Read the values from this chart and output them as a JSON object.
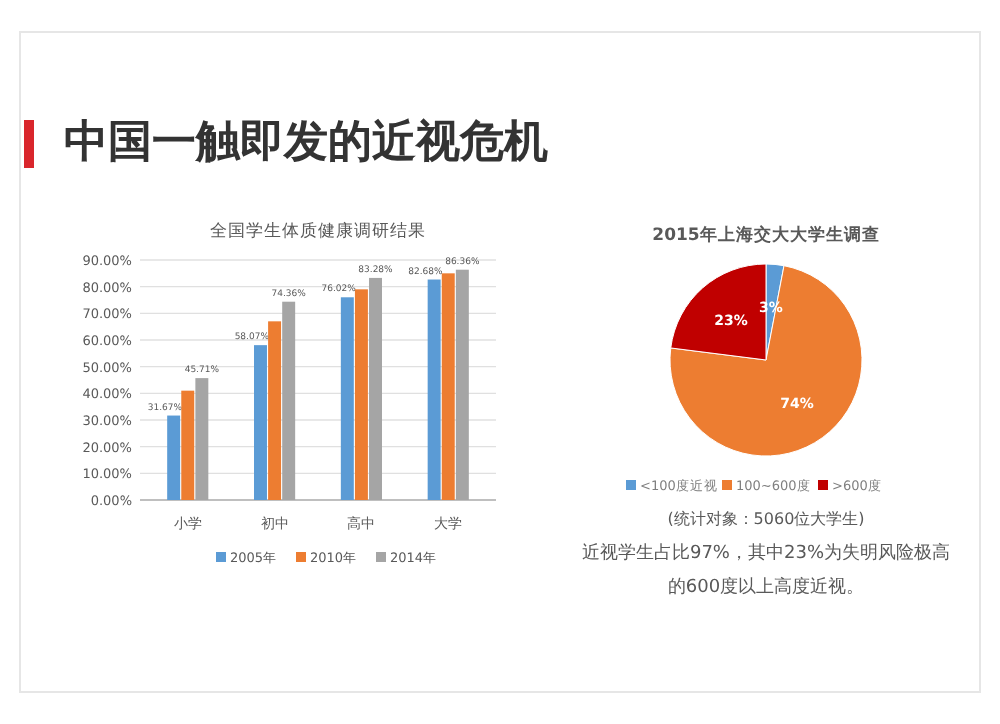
{
  "chart_data": [
    {
      "type": "bar",
      "title": "全国学生体质健康调研结果",
      "annotations": [
        "中国一触即发的近视危机"
      ],
      "categories": [
        "小学",
        "初中",
        "高中",
        "大学"
      ],
      "series": [
        {
          "name": "2005年",
          "color": "#5b9bd5",
          "values": [
            31.67,
            58.07,
            76.02,
            82.68
          ],
          "value_labels": [
            "31.67%",
            "58.07%",
            "76.02%",
            "82.68%"
          ]
        },
        {
          "name": "2010年",
          "color": "#ed7d31",
          "values": [
            41,
            67,
            79,
            85
          ]
        },
        {
          "name": "2014年",
          "color": "#a5a5a5",
          "values": [
            45.71,
            74.36,
            83.28,
            86.36
          ],
          "value_labels": [
            "45.71%",
            "74.36%",
            "83.28%",
            "86.36%"
          ]
        }
      ],
      "ylim": [
        0,
        90
      ],
      "yticks": [
        {
          "value": 0,
          "label": "0.00%"
        },
        {
          "value": 10,
          "label": "10.00%"
        },
        {
          "value": 20,
          "label": "20.00%"
        },
        {
          "value": 30,
          "label": "30.00%"
        },
        {
          "value": 40,
          "label": "40.00%"
        },
        {
          "value": 50,
          "label": "50.00%"
        },
        {
          "value": 60,
          "label": "60.00%"
        },
        {
          "value": 70,
          "label": "70.00%"
        },
        {
          "value": 80,
          "label": "80.00%"
        },
        {
          "value": 90,
          "label": "90.00%"
        }
      ],
      "grid": "y",
      "legend": "bottom"
    },
    {
      "type": "pie",
      "title": "2015年上海交大大学生调查",
      "categories": [
        "<100度近视",
        "100~600度",
        ">600度"
      ],
      "values": [
        3,
        74,
        23
      ],
      "colors": [
        "#5b9bd5",
        "#ed7d31",
        "#c00000"
      ],
      "value_labels": [
        "3%",
        "74%",
        "23%"
      ],
      "legend": "bottom",
      "annotations": [
        "(统计对象：5060位大学生)",
        "近视学生占比97%，其中23%为失明风险极高",
        "的600度以上高度近视。"
      ]
    }
  ]
}
